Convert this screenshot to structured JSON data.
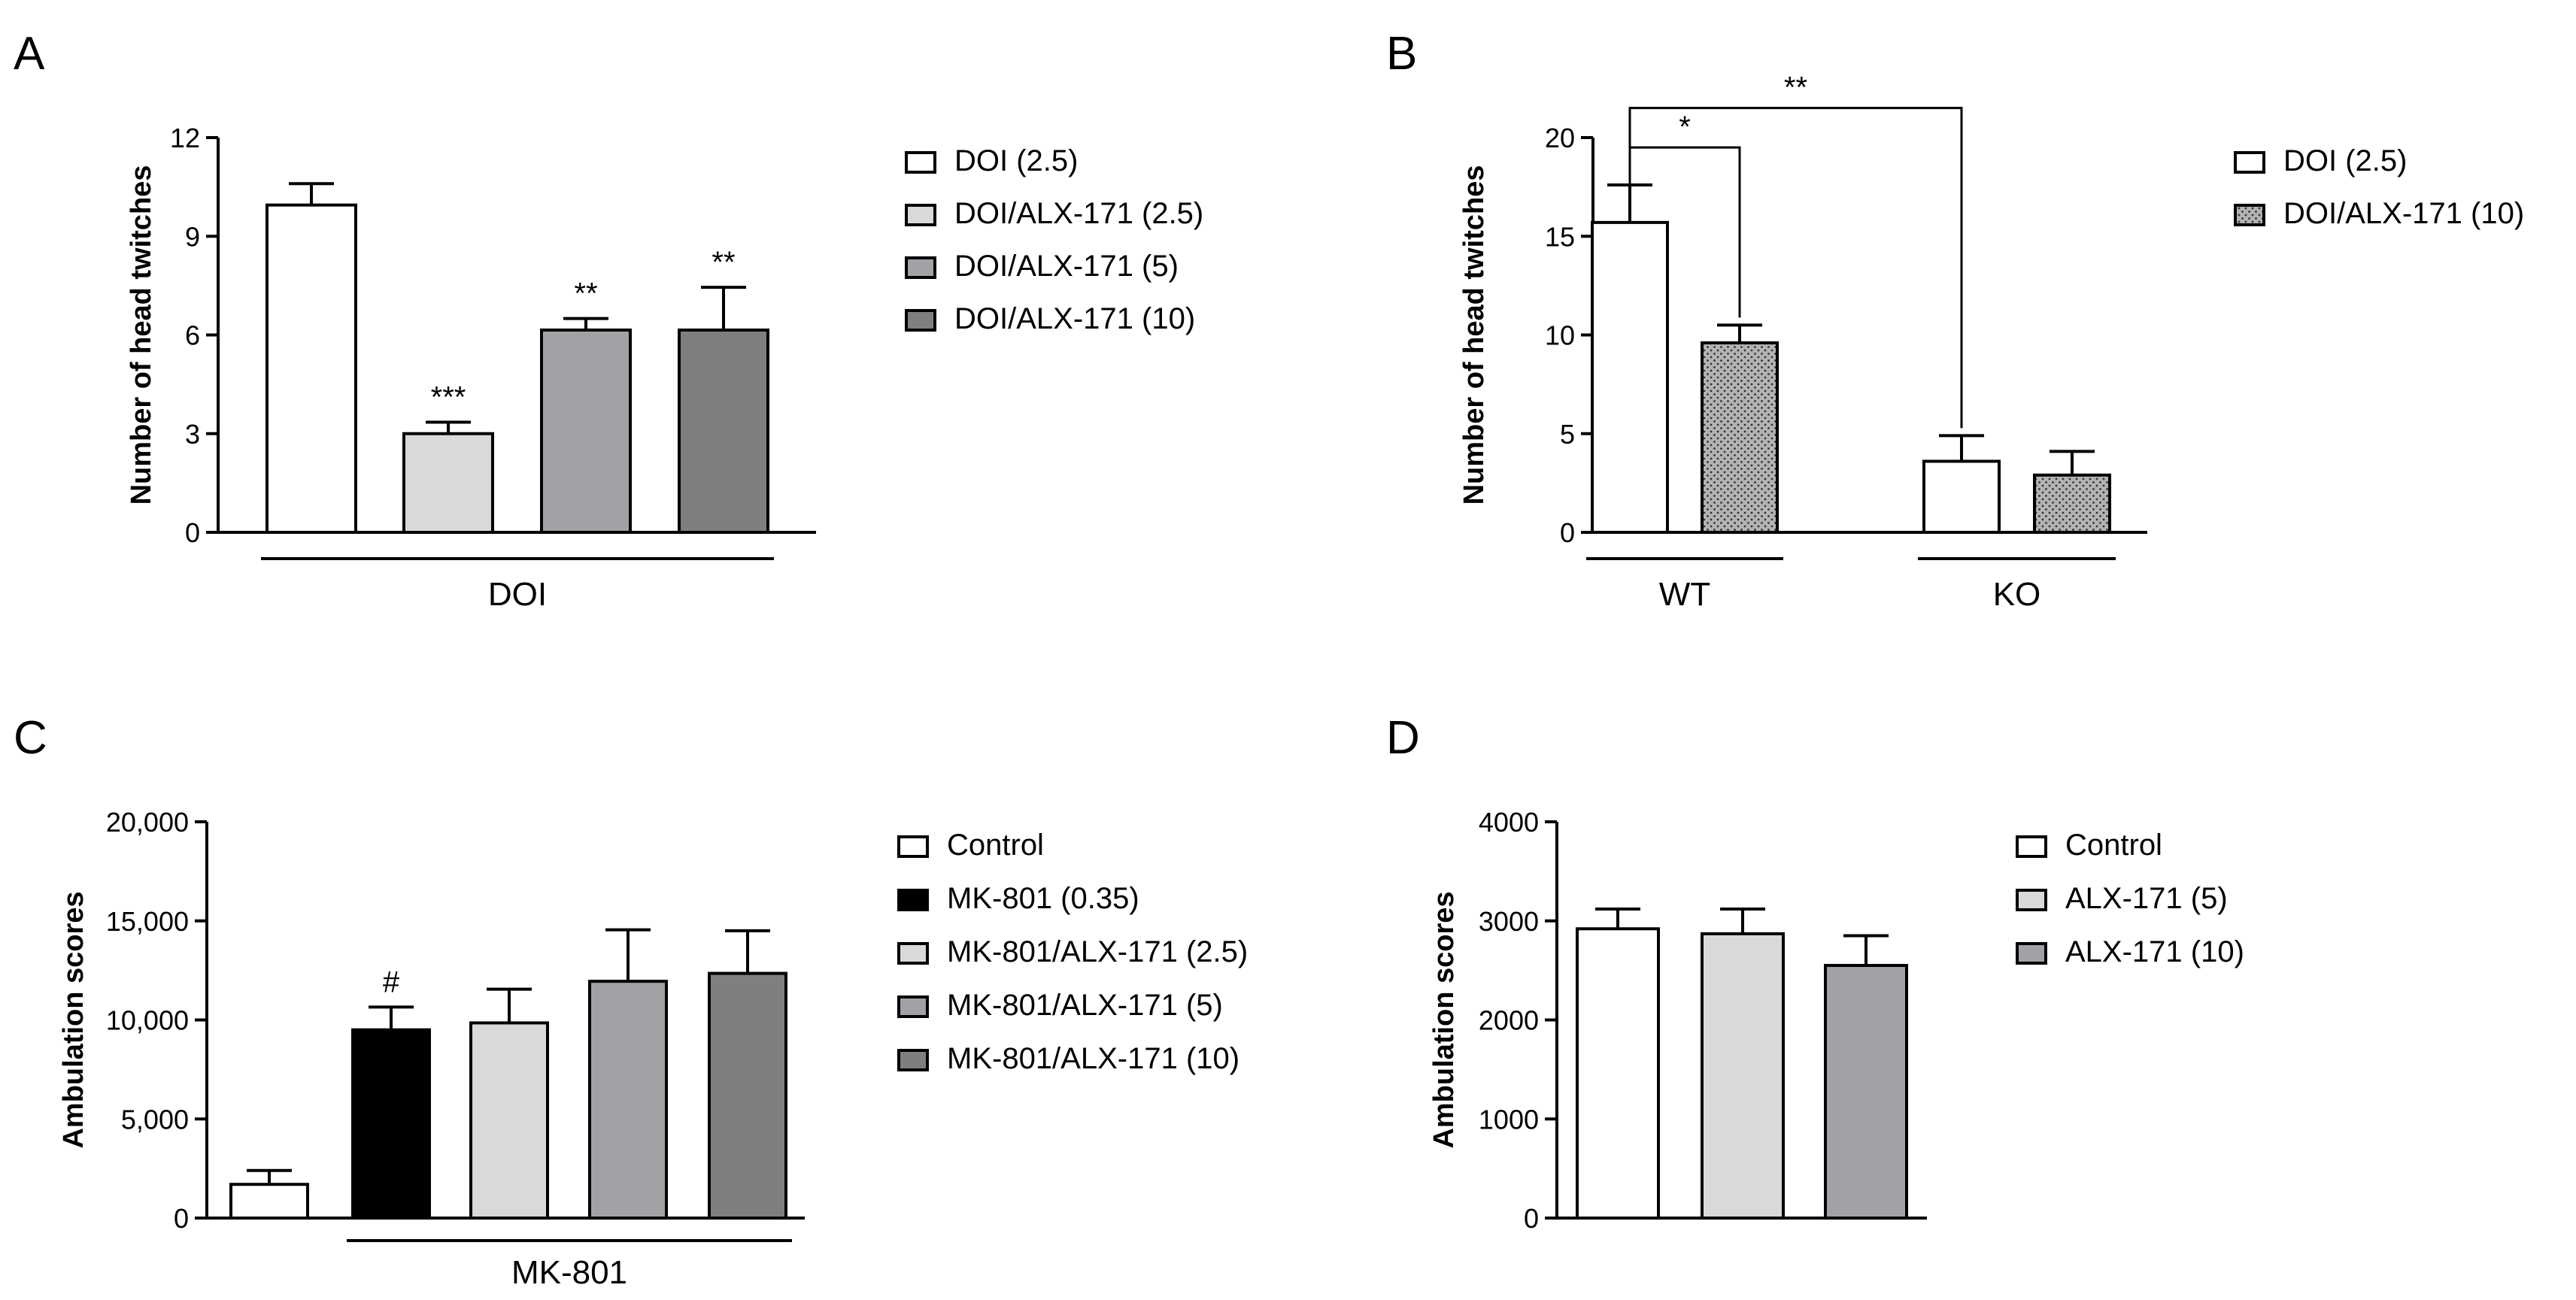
{
  "colors": {
    "white": "#ffffff",
    "light_gray": "#d9d9d9",
    "mid_gray": "#a2a2a6",
    "dark_gray": "#7f7f7f",
    "black": "#000000",
    "dotted": "#b3b3b3"
  },
  "chart_data": [
    {
      "panel": "A",
      "type": "bar",
      "ylabel": "Number of head twitches",
      "ylim": [
        0,
        12
      ],
      "yticks": [
        "0",
        "3",
        "6",
        "9",
        "12"
      ],
      "ytick_values": [
        0,
        3,
        6,
        9,
        12
      ],
      "group_labels": [
        {
          "text": "DOI",
          "from": 0,
          "to": 3
        }
      ],
      "bars": [
        {
          "name": "DOI (2.5)",
          "value": 9.95,
          "error": 0.65,
          "color": "#ffffff",
          "pattern": "none",
          "sig": ""
        },
        {
          "name": "DOI/ALX-171 (2.5)",
          "value": 3.0,
          "error": 0.35,
          "color": "#d9d9d9",
          "pattern": "none",
          "sig": "***"
        },
        {
          "name": "DOI/ALX-171 (5)",
          "value": 6.15,
          "error": 0.35,
          "color": "#a2a2a6",
          "pattern": "none",
          "sig": "**"
        },
        {
          "name": "DOI/ALX-171 (10)",
          "value": 6.15,
          "error": 1.3,
          "color": "#7f7f7f",
          "pattern": "none",
          "sig": "**"
        }
      ],
      "legend": [
        {
          "label": "DOI (2.5)",
          "color": "#ffffff",
          "pattern": "none"
        },
        {
          "label": "DOI/ALX-171 (2.5)",
          "color": "#d9d9d9",
          "pattern": "none"
        },
        {
          "label": "DOI/ALX-171 (5)",
          "color": "#a2a2a6",
          "pattern": "none"
        },
        {
          "label": "DOI/ALX-171 (10)",
          "color": "#7f7f7f",
          "pattern": "none"
        }
      ],
      "brackets": []
    },
    {
      "panel": "B",
      "type": "bar",
      "ylabel": "Number of head twitches",
      "ylim": [
        0,
        20
      ],
      "yticks": [
        "0",
        "5",
        "10",
        "15",
        "20"
      ],
      "ytick_values": [
        0,
        5,
        10,
        15,
        20
      ],
      "group_labels": [
        {
          "text": "WT",
          "from": 0,
          "to": 1
        },
        {
          "text": "KO",
          "from": 2,
          "to": 3
        }
      ],
      "bars": [
        {
          "name": "DOI (2.5) WT",
          "value": 15.7,
          "error": 1.9,
          "color": "#ffffff",
          "pattern": "none",
          "sig": ""
        },
        {
          "name": "DOI/ALX-171 (10) WT",
          "value": 9.6,
          "error": 0.9,
          "color": "#b3b3b3",
          "pattern": "dots",
          "sig": ""
        },
        {
          "name": "DOI (2.5) KO",
          "value": 3.6,
          "error": 1.3,
          "color": "#ffffff",
          "pattern": "none",
          "sig": ""
        },
        {
          "name": "DOI/ALX-171 (10) KO",
          "value": 2.9,
          "error": 1.2,
          "color": "#b3b3b3",
          "pattern": "dots",
          "sig": ""
        }
      ],
      "legend": [
        {
          "label": "DOI (2.5)",
          "color": "#ffffff",
          "pattern": "none"
        },
        {
          "label": "DOI/ALX-171 (10)",
          "color": "#b3b3b3",
          "pattern": "dots"
        }
      ],
      "brackets": [
        {
          "from": 0,
          "to": 1,
          "level": 19.5,
          "label": "*"
        },
        {
          "from": 0,
          "to": 2,
          "level": 21.5,
          "label": "**"
        }
      ]
    },
    {
      "panel": "C",
      "type": "bar",
      "ylabel": "Ambulation scores",
      "ylim": [
        0,
        20000
      ],
      "yticks": [
        "0",
        "5,000",
        "10,000",
        "15,000",
        "20,000"
      ],
      "ytick_values": [
        0,
        5000,
        10000,
        15000,
        20000
      ],
      "group_labels": [
        {
          "text": "MK-801",
          "from": 1,
          "to": 4
        }
      ],
      "bars": [
        {
          "name": "Control",
          "value": 1700,
          "error": 700,
          "color": "#ffffff",
          "pattern": "none",
          "sig": ""
        },
        {
          "name": "MK-801 (0.35)",
          "value": 9500,
          "error": 1150,
          "color": "#000000",
          "pattern": "none",
          "sig": "#"
        },
        {
          "name": "MK-801/ALX-171 (2.5)",
          "value": 9850,
          "error": 1700,
          "color": "#d9d9d9",
          "pattern": "none",
          "sig": ""
        },
        {
          "name": "MK-801/ALX-171 (5)",
          "value": 11950,
          "error": 2600,
          "color": "#a2a2a6",
          "pattern": "none",
          "sig": ""
        },
        {
          "name": "MK-801/ALX-171 (10)",
          "value": 12350,
          "error": 2150,
          "color": "#7f7f7f",
          "pattern": "none",
          "sig": ""
        }
      ],
      "legend": [
        {
          "label": "Control",
          "color": "#ffffff",
          "pattern": "none"
        },
        {
          "label": "MK-801 (0.35)",
          "color": "#000000",
          "pattern": "none"
        },
        {
          "label": "MK-801/ALX-171 (2.5)",
          "color": "#d9d9d9",
          "pattern": "none"
        },
        {
          "label": "MK-801/ALX-171 (5)",
          "color": "#a2a2a6",
          "pattern": "none"
        },
        {
          "label": "MK-801/ALX-171 (10)",
          "color": "#7f7f7f",
          "pattern": "none"
        }
      ],
      "brackets": []
    },
    {
      "panel": "D",
      "type": "bar",
      "ylabel": "Ambulation scores",
      "ylim": [
        0,
        4000
      ],
      "yticks": [
        "0",
        "1000",
        "2000",
        "3000",
        "4000"
      ],
      "ytick_values": [
        0,
        1000,
        2000,
        3000,
        4000
      ],
      "group_labels": [],
      "bars": [
        {
          "name": "Control",
          "value": 2920,
          "error": 200,
          "color": "#ffffff",
          "pattern": "none",
          "sig": ""
        },
        {
          "name": "ALX-171 (5)",
          "value": 2870,
          "error": 250,
          "color": "#d9d9d9",
          "pattern": "none",
          "sig": ""
        },
        {
          "name": "ALX-171 (10)",
          "value": 2550,
          "error": 300,
          "color": "#a2a2a6",
          "pattern": "none",
          "sig": ""
        }
      ],
      "legend": [
        {
          "label": "Control",
          "color": "#ffffff",
          "pattern": "none"
        },
        {
          "label": "ALX-171 (5)",
          "color": "#d9d9d9",
          "pattern": "none"
        },
        {
          "label": "ALX-171 (10)",
          "color": "#a2a2a6",
          "pattern": "none"
        }
      ],
      "brackets": []
    }
  ]
}
